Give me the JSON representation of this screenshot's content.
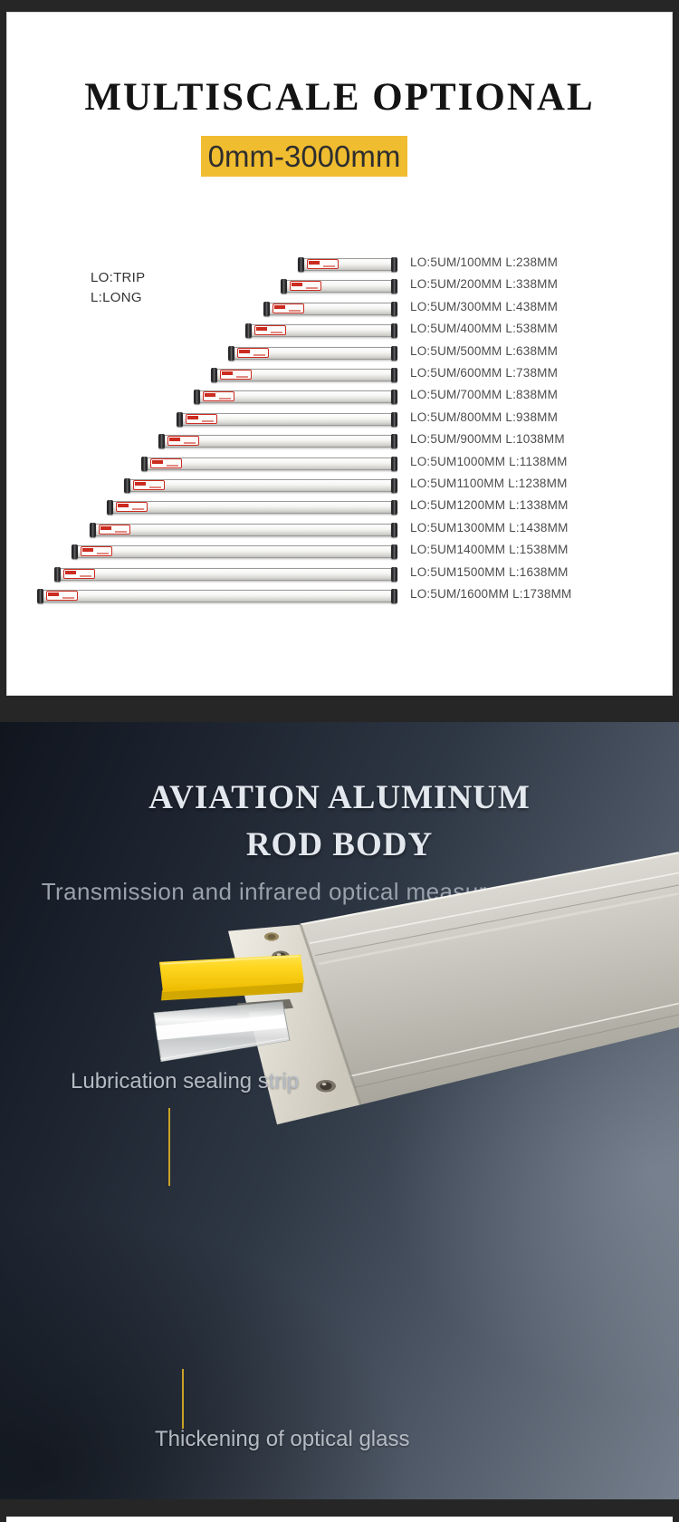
{
  "top_panel": {
    "title": "MULTISCALE OPTIONAL",
    "range_badge": "0mm-3000mm",
    "legend": {
      "line1": "LO:TRIP",
      "line2": "L:LONG"
    },
    "scales": [
      {
        "label": "LO:5UM/100MM L:238MM"
      },
      {
        "label": "LO:5UM/200MM L:338MM"
      },
      {
        "label": "LO:5UM/300MM L:438MM"
      },
      {
        "label": "LO:5UM/400MM L:538MM"
      },
      {
        "label": "LO:5UM/500MM L:638MM"
      },
      {
        "label": "LO:5UM/600MM L:738MM"
      },
      {
        "label": "LO:5UM/700MM L:838MM"
      },
      {
        "label": "LO:5UM/800MM L:938MM"
      },
      {
        "label": "LO:5UM/900MM L:1038MM"
      },
      {
        "label": "LO:5UM1000MM L:1138MM"
      },
      {
        "label": "LO:5UM1100MM L:1238MM"
      },
      {
        "label": "LO:5UM1200MM L:1338MM"
      },
      {
        "label": "LO:5UM1300MM L:1438MM"
      },
      {
        "label": "LO:5UM1400MM L:1538MM"
      },
      {
        "label": "LO:5UM1500MM L:1638MM"
      },
      {
        "label": "LO:5UM/1600MM L:1738MM"
      }
    ]
  },
  "bottom_panel": {
    "heading_line1": "AVIATION ALUMINUM",
    "heading_line2": "ROD BODY",
    "subtitle": "Transmission and infrared optical measurement system",
    "annotations": {
      "sealing_strip": "Lubrication sealing strip",
      "optical_glass": "Thickening of optical glass"
    }
  },
  "colors": {
    "badge_yellow": "#f0bc30",
    "annotation_line_yellow": "#c9a227",
    "seal_strip_yellow": "#fed61e",
    "frame_dark": "#262626"
  }
}
